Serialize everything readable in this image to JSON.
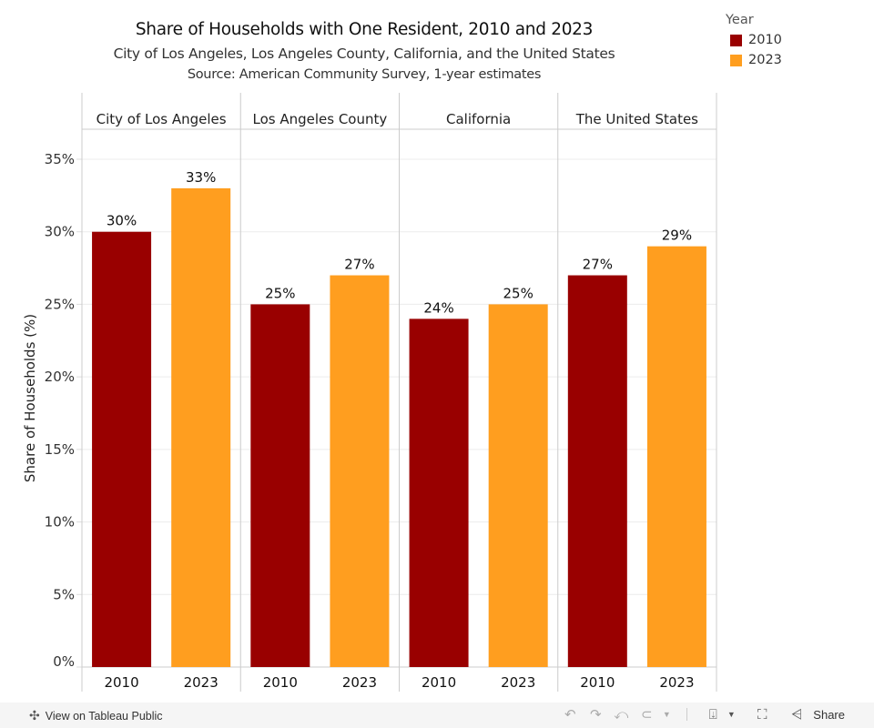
{
  "header": {
    "title": "Share of Households with One Resident, 2010 and 2023",
    "subtitle": "City of Los Angeles, Los Angeles County, California, and the United States",
    "source": "Source: American Community Survey, 1-year estimates"
  },
  "legend": {
    "title": "Year",
    "items": [
      {
        "label": "2010",
        "color": "#990000"
      },
      {
        "label": "2023",
        "color": "#FF9E1F"
      }
    ]
  },
  "chart_data": {
    "type": "bar",
    "title": "Share of Households with One Resident, 2010 and 2023",
    "subtitle": "City of Los Angeles, Los Angeles County, California, and the United States",
    "ylabel": "Share of Households (%)",
    "xlabel": "",
    "ylim": [
      0,
      35
    ],
    "yticks": [
      0,
      5,
      10,
      15,
      20,
      25,
      30,
      35
    ],
    "ytick_labels": [
      "0%",
      "5%",
      "10%",
      "15%",
      "20%",
      "25%",
      "30%",
      "35%"
    ],
    "grid": true,
    "legend_position": "top-right",
    "panels": [
      "City of Los Angeles",
      "Los Angeles County",
      "California",
      "The United States"
    ],
    "categories": [
      "2010",
      "2023"
    ],
    "series": [
      {
        "name": "2010",
        "color": "#990000",
        "values": [
          30,
          25,
          24,
          27
        ]
      },
      {
        "name": "2023",
        "color": "#FF9E1F",
        "values": [
          33,
          27,
          25,
          29
        ]
      }
    ],
    "data_labels": [
      [
        "30%",
        "33%"
      ],
      [
        "25%",
        "27%"
      ],
      [
        "24%",
        "25%"
      ],
      [
        "27%",
        "29%"
      ]
    ]
  },
  "footer": {
    "view_label": "View on Tableau Public",
    "share_label": "Share"
  }
}
